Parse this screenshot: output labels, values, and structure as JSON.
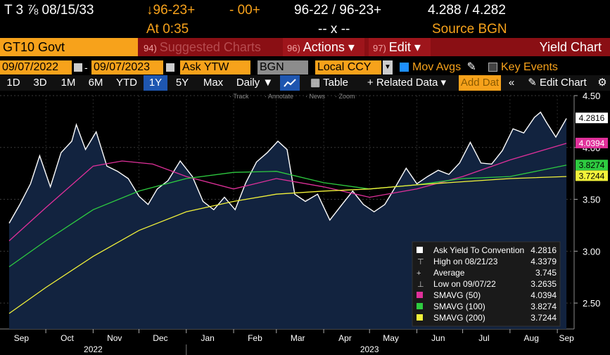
{
  "header": {
    "security": "T 3 ⅞ 08/15/33",
    "bid_price": "↓96-23+",
    "change": "- 00+",
    "bid_ask": "96-22 / 96-23+",
    "yields": "4.288 / 4.282",
    "time": "At 0:35",
    "size": "-- x --",
    "source": "Source BGN"
  },
  "toolbar": {
    "ticker": "GT10 Govt",
    "suggested_num": "94)",
    "suggested_label": "Suggested Charts",
    "actions_num": "96)",
    "actions_label": "Actions ▾",
    "edit_num": "97)",
    "edit_label": "Edit ▾",
    "title": "Yield Chart"
  },
  "controls": {
    "start_date": "09/07/2022",
    "end_date": "09/07/2023",
    "field": "Ask YTW",
    "source": "BGN",
    "currency": "Local CCY",
    "mov_avgs": "Mov Avgs",
    "key_events": "Key Events"
  },
  "periods": [
    "1D",
    "3D",
    "1M",
    "6M",
    "YTD",
    "1Y",
    "5Y",
    "Max"
  ],
  "selected_period": "1Y",
  "period_controls": {
    "daily": "Daily ▼",
    "table": "Table",
    "related": "+ Related Data ▾",
    "add_data": "Add Dat",
    "edit_chart": "Edit Chart"
  },
  "chart_tools": [
    "Track",
    "Annotate",
    "News",
    "Zoom"
  ],
  "colors": {
    "yield": "#ffffff",
    "fill": "#12233f",
    "sma50": "#e0309a",
    "sma100": "#2ecc40",
    "sma200": "#f2f23a",
    "accent": "#f7a21b"
  },
  "chart_data": {
    "type": "area",
    "ylim": [
      2.25,
      4.5
    ],
    "yticks": [
      2.5,
      3.0,
      3.5,
      4.0,
      4.5
    ],
    "ytick_labels": [
      "2.50",
      "3.00",
      "3.50",
      "4.00",
      "4.50"
    ],
    "x_months": [
      "Sep",
      "Oct",
      "Nov",
      "Dec",
      "Jan",
      "Feb",
      "Mar",
      "Apr",
      "May",
      "Jun",
      "Jul",
      "Aug",
      "Sep"
    ],
    "x_years": [
      "2022",
      "2023"
    ],
    "series": [
      {
        "name": "Ask Yield To Convention",
        "x": [
          "2022-09-07",
          "2022-09-14",
          "2022-09-21",
          "2022-09-27",
          "2022-10-04",
          "2022-10-11",
          "2022-10-18",
          "2022-10-21",
          "2022-10-27",
          "2022-11-03",
          "2022-11-10",
          "2022-11-17",
          "2022-11-24",
          "2022-12-01",
          "2022-12-07",
          "2022-12-13",
          "2022-12-20",
          "2022-12-28",
          "2023-01-05",
          "2023-01-12",
          "2023-01-19",
          "2023-01-26",
          "2023-02-02",
          "2023-02-09",
          "2023-02-16",
          "2023-02-23",
          "2023-03-02",
          "2023-03-08",
          "2023-03-13",
          "2023-03-20",
          "2023-03-28",
          "2023-04-05",
          "2023-04-13",
          "2023-04-20",
          "2023-04-27",
          "2023-05-04",
          "2023-05-11",
          "2023-05-18",
          "2023-05-25",
          "2023-06-01",
          "2023-06-08",
          "2023-06-15",
          "2023-06-22",
          "2023-06-29",
          "2023-07-06",
          "2023-07-13",
          "2023-07-20",
          "2023-07-27",
          "2023-08-03",
          "2023-08-10",
          "2023-08-17",
          "2023-08-21",
          "2023-08-25",
          "2023-08-31",
          "2023-09-07"
        ],
        "values": [
          3.27,
          3.45,
          3.65,
          3.92,
          3.62,
          3.95,
          4.06,
          4.22,
          3.98,
          4.15,
          3.82,
          3.77,
          3.7,
          3.53,
          3.45,
          3.6,
          3.68,
          3.87,
          3.72,
          3.48,
          3.4,
          3.52,
          3.4,
          3.66,
          3.86,
          3.95,
          4.06,
          3.98,
          3.55,
          3.48,
          3.55,
          3.3,
          3.45,
          3.58,
          3.45,
          3.38,
          3.45,
          3.62,
          3.8,
          3.65,
          3.72,
          3.78,
          3.74,
          3.85,
          4.05,
          3.85,
          3.84,
          3.97,
          4.18,
          4.14,
          4.29,
          4.34,
          4.24,
          4.1,
          4.28
        ]
      },
      {
        "name": "SMAVG (50)",
        "x": [
          "2022-09-07",
          "2022-10-01",
          "2022-11-01",
          "2022-11-20",
          "2022-12-10",
          "2023-01-01",
          "2023-02-01",
          "2023-03-01",
          "2023-04-01",
          "2023-05-01",
          "2023-06-01",
          "2023-07-01",
          "2023-08-01",
          "2023-09-07"
        ],
        "values": [
          3.1,
          3.42,
          3.82,
          3.87,
          3.84,
          3.72,
          3.6,
          3.7,
          3.62,
          3.52,
          3.6,
          3.72,
          3.88,
          4.04
        ]
      },
      {
        "name": "SMAVG (100)",
        "x": [
          "2022-09-07",
          "2022-10-01",
          "2022-11-01",
          "2022-12-01",
          "2023-01-01",
          "2023-02-01",
          "2023-03-01",
          "2023-04-01",
          "2023-05-01",
          "2023-06-01",
          "2023-07-01",
          "2023-08-01",
          "2023-09-07"
        ],
        "values": [
          2.85,
          3.1,
          3.4,
          3.58,
          3.7,
          3.76,
          3.77,
          3.66,
          3.6,
          3.64,
          3.7,
          3.72,
          3.83
        ]
      },
      {
        "name": "SMAVG (200)",
        "x": [
          "2022-09-07",
          "2022-10-01",
          "2022-11-01",
          "2022-12-01",
          "2023-01-01",
          "2023-02-01",
          "2023-03-01",
          "2023-04-01",
          "2023-05-01",
          "2023-06-01",
          "2023-07-01",
          "2023-08-01",
          "2023-09-07"
        ],
        "values": [
          2.4,
          2.65,
          2.95,
          3.2,
          3.38,
          3.48,
          3.55,
          3.58,
          3.6,
          3.64,
          3.67,
          3.7,
          3.72
        ]
      }
    ],
    "last_labels": [
      {
        "value": 4.2816,
        "label": "4.2816",
        "bg": "#ffffff",
        "fg": "#000000"
      },
      {
        "value": 4.0394,
        "label": "4.0394",
        "bg": "#e0309a",
        "fg": "#ffffff"
      },
      {
        "value": 3.8274,
        "label": "3.8274",
        "bg": "#2ecc40",
        "fg": "#000000"
      },
      {
        "value": 3.7244,
        "label": "3.7244",
        "bg": "#f2f23a",
        "fg": "#000000"
      }
    ],
    "legend": [
      {
        "label": "Ask Yield To Convention",
        "value": "4.2816",
        "marker": "square",
        "color": "#ffffff"
      },
      {
        "label": "High on 08/21/23",
        "value": "4.3379",
        "marker": "high",
        "color": "#cccccc"
      },
      {
        "label": "Average",
        "value": "3.745",
        "marker": "avg",
        "color": "#cccccc"
      },
      {
        "label": "Low on 09/07/22",
        "value": "3.2635",
        "marker": "low",
        "color": "#cccccc"
      },
      {
        "label": "SMAVG (50)",
        "value": "4.0394",
        "marker": "square",
        "color": "#e0309a"
      },
      {
        "label": "SMAVG (100)",
        "value": "3.8274",
        "marker": "square",
        "color": "#2ecc40"
      },
      {
        "label": "SMAVG (200)",
        "value": "3.7244",
        "marker": "square",
        "color": "#f2f23a"
      }
    ],
    "legend_position": "bottom-right",
    "grid": true
  }
}
